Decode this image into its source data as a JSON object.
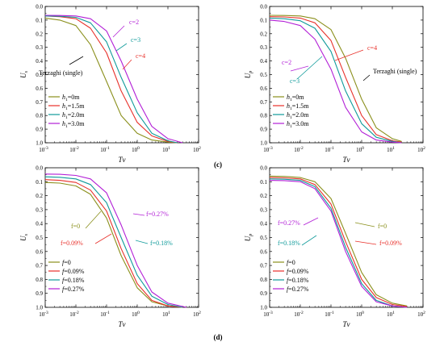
{
  "figure": {
    "panel_labels": [
      "(c)",
      "(d)"
    ]
  },
  "chart_data": [
    {
      "type": "line",
      "id": "c-left",
      "xlabel": "Tv",
      "ylabel": "Us",
      "ylabel_main": "U",
      "ylabel_sub": "s",
      "x_scale": "log",
      "xlim": [
        0.001,
        100
      ],
      "ylim": [
        0.0,
        1.0
      ],
      "y_inverted": true,
      "xticks": [
        {
          "e": "-3"
        },
        {
          "e": "-2"
        },
        {
          "e": "-1"
        },
        {
          "e": "0"
        },
        {
          "e": "1"
        },
        {
          "e": "2"
        }
      ],
      "yticks": [
        "0.0",
        "0.1",
        "0.2",
        "0.3",
        "0.4",
        "0.5",
        "0.6",
        "0.7",
        "0.8",
        "0.9",
        "1.0"
      ],
      "legend_position": "bottom-left",
      "series": [
        {
          "label_main": "h",
          "label_sub": "1",
          "label_rest": "=0m",
          "color": "#8a8f1b",
          "x": [
            0.001,
            0.003,
            0.01,
            0.03,
            0.1,
            0.3,
            1,
            3,
            10,
            20
          ],
          "y": [
            0.085,
            0.1,
            0.14,
            0.28,
            0.55,
            0.8,
            0.93,
            0.98,
            0.995,
            1.0
          ]
        },
        {
          "label_main": "h",
          "label_sub": "1",
          "label_rest": "=1.5m",
          "color": "#e8302a",
          "x": [
            0.001,
            0.003,
            0.01,
            0.03,
            0.1,
            0.3,
            1,
            3,
            10,
            20
          ],
          "y": [
            0.07,
            0.075,
            0.09,
            0.16,
            0.34,
            0.62,
            0.85,
            0.95,
            0.99,
            1.0
          ]
        },
        {
          "label_main": "h",
          "label_sub": "1",
          "label_rest": "=2.0m",
          "color": "#0f9a9a",
          "x": [
            0.001,
            0.003,
            0.01,
            0.03,
            0.1,
            0.3,
            1,
            3,
            10,
            20
          ],
          "y": [
            0.07,
            0.072,
            0.08,
            0.12,
            0.26,
            0.52,
            0.78,
            0.93,
            0.985,
            1.0
          ]
        },
        {
          "label_main": "h",
          "label_sub": "1",
          "label_rest": "=3.0m",
          "color": "#b21fd6",
          "x": [
            0.001,
            0.003,
            0.01,
            0.03,
            0.1,
            0.3,
            1,
            3,
            10,
            30
          ],
          "y": [
            0.065,
            0.066,
            0.07,
            0.09,
            0.18,
            0.4,
            0.68,
            0.88,
            0.97,
            1.0
          ]
        }
      ],
      "annotations": [
        {
          "text": "c=2",
          "color": "#b21fd6"
        },
        {
          "text": "c=3",
          "color": "#0f9a9a"
        },
        {
          "text": "c=4",
          "color": "#e8302a"
        },
        {
          "text": "Terzaghi (single)",
          "color": "#000000"
        }
      ]
    },
    {
      "type": "line",
      "id": "c-right",
      "xlabel": "Tv",
      "ylabel": "Up",
      "ylabel_main": "U",
      "ylabel_sub": "p",
      "x_scale": "log",
      "xlim": [
        0.001,
        100
      ],
      "ylim": [
        0.0,
        1.0
      ],
      "y_inverted": true,
      "xticks": [
        {
          "e": "-3"
        },
        {
          "e": "-2"
        },
        {
          "e": "-1"
        },
        {
          "e": "0"
        },
        {
          "e": "1"
        },
        {
          "e": "2"
        }
      ],
      "yticks": [
        "0.0",
        "0.1",
        "0.2",
        "0.3",
        "0.4",
        "0.5",
        "0.6",
        "0.7",
        "0.8",
        "0.9",
        "1.0"
      ],
      "legend_position": "bottom-left",
      "series": [
        {
          "label_main": "h",
          "label_sub": "1",
          "label_rest": "=0m",
          "color": "#8a8f1b",
          "x": [
            0.001,
            0.003,
            0.01,
            0.03,
            0.1,
            0.3,
            1,
            3,
            10,
            20
          ],
          "y": [
            0.065,
            0.066,
            0.07,
            0.09,
            0.17,
            0.38,
            0.68,
            0.89,
            0.97,
            0.99
          ]
        },
        {
          "label_main": "h",
          "label_sub": "1",
          "label_rest": "=1.5m",
          "color": "#e8302a",
          "x": [
            0.001,
            0.003,
            0.01,
            0.03,
            0.1,
            0.3,
            1,
            3,
            10,
            20
          ],
          "y": [
            0.075,
            0.077,
            0.085,
            0.12,
            0.25,
            0.52,
            0.8,
            0.94,
            0.985,
            0.995
          ]
        },
        {
          "label_main": "h",
          "label_sub": "1",
          "label_rest": "=2.0m",
          "color": "#0f9a9a",
          "x": [
            0.001,
            0.003,
            0.01,
            0.03,
            0.1,
            0.3,
            1,
            3,
            10,
            20
          ],
          "y": [
            0.085,
            0.09,
            0.105,
            0.16,
            0.33,
            0.62,
            0.86,
            0.96,
            0.99,
            1.0
          ]
        },
        {
          "label_main": "h",
          "label_sub": "1",
          "label_rest": "=3.0m",
          "color": "#b21fd6",
          "x": [
            0.001,
            0.003,
            0.01,
            0.03,
            0.1,
            0.3,
            1,
            3,
            10,
            20
          ],
          "y": [
            0.1,
            0.11,
            0.14,
            0.24,
            0.46,
            0.74,
            0.92,
            0.98,
            0.995,
            1.0
          ]
        }
      ],
      "annotations": [
        {
          "text": "c=4",
          "color": "#e8302a"
        },
        {
          "text": "c=2",
          "color": "#b21fd6"
        },
        {
          "text": "c=3",
          "color": "#0f9a9a"
        },
        {
          "text": "Terzaghi (single)",
          "color": "#000000"
        }
      ]
    },
    {
      "type": "line",
      "id": "d-left",
      "xlabel": "Tv",
      "ylabel": "Us",
      "ylabel_main": "U",
      "ylabel_sub": "s",
      "x_scale": "log",
      "xlim": [
        0.001,
        100
      ],
      "ylim": [
        0.0,
        1.0
      ],
      "y_inverted": true,
      "xticks": [
        {
          "e": "-3"
        },
        {
          "e": "-2"
        },
        {
          "e": "-1"
        },
        {
          "e": "0"
        },
        {
          "e": "1"
        },
        {
          "e": "2"
        }
      ],
      "yticks": [
        "0.0",
        "0.1",
        "0.2",
        "0.3",
        "0.4",
        "0.5",
        "0.6",
        "0.7",
        "0.8",
        "0.9",
        "1.0"
      ],
      "legend_position": "bottom-left",
      "series": [
        {
          "label_main": "f",
          "label_sub": "",
          "label_rest": "=0",
          "color": "#8a8f1b",
          "x": [
            0.001,
            0.003,
            0.01,
            0.03,
            0.1,
            0.3,
            1,
            3,
            10,
            30
          ],
          "y": [
            0.105,
            0.11,
            0.13,
            0.19,
            0.36,
            0.63,
            0.86,
            0.96,
            0.99,
            1.0
          ]
        },
        {
          "label_main": "f",
          "label_sub": "",
          "label_rest": "=0.09%",
          "color": "#e8302a",
          "x": [
            0.001,
            0.003,
            0.01,
            0.03,
            0.1,
            0.3,
            1,
            3,
            10,
            30
          ],
          "y": [
            0.085,
            0.09,
            0.105,
            0.16,
            0.31,
            0.58,
            0.83,
            0.95,
            0.99,
            1.0
          ]
        },
        {
          "label_main": "f",
          "label_sub": "",
          "label_rest": "=0.18%",
          "color": "#0f9a9a",
          "x": [
            0.001,
            0.003,
            0.01,
            0.03,
            0.1,
            0.3,
            1,
            3,
            10,
            30
          ],
          "y": [
            0.065,
            0.068,
            0.08,
            0.12,
            0.25,
            0.5,
            0.77,
            0.92,
            0.98,
            1.0
          ]
        },
        {
          "label_main": "f",
          "label_sub": "",
          "label_rest": "=0.27%",
          "color": "#b21fd6",
          "x": [
            0.001,
            0.003,
            0.01,
            0.03,
            0.1,
            0.3,
            1,
            3,
            10,
            40
          ],
          "y": [
            0.045,
            0.047,
            0.055,
            0.08,
            0.18,
            0.41,
            0.7,
            0.89,
            0.97,
            1.0
          ]
        }
      ],
      "annotations": [
        {
          "text": "f=0",
          "color": "#8a8f1b"
        },
        {
          "text": "f=0.09%",
          "color": "#e8302a"
        },
        {
          "text": "f=0.27%",
          "color": "#b21fd6"
        },
        {
          "text": "f=0.18%",
          "color": "#0f9a9a"
        }
      ]
    },
    {
      "type": "line",
      "id": "d-right",
      "xlabel": "Tv",
      "ylabel": "Up",
      "ylabel_main": "U",
      "ylabel_sub": "p",
      "x_scale": "log",
      "xlim": [
        0.001,
        100
      ],
      "ylim": [
        0.0,
        1.0
      ],
      "y_inverted": true,
      "xticks": [
        {
          "e": "-3"
        },
        {
          "e": "-2"
        },
        {
          "e": "-1"
        },
        {
          "e": "0"
        },
        {
          "e": "1"
        },
        {
          "e": "2"
        }
      ],
      "yticks": [
        "0.0",
        "0.1",
        "0.2",
        "0.3",
        "0.4",
        "0.5",
        "0.6",
        "0.7",
        "0.8",
        "0.9",
        "1.0"
      ],
      "legend_position": "bottom-left",
      "series": [
        {
          "label_main": "f",
          "label_sub": "",
          "label_rest": "=0",
          "color": "#8a8f1b",
          "x": [
            0.001,
            0.003,
            0.01,
            0.03,
            0.1,
            0.3,
            1,
            3,
            10,
            30
          ],
          "y": [
            0.06,
            0.062,
            0.07,
            0.1,
            0.22,
            0.47,
            0.75,
            0.91,
            0.97,
            0.99
          ]
        },
        {
          "label_main": "f",
          "label_sub": "",
          "label_rest": "=0.09%",
          "color": "#e8302a",
          "x": [
            0.001,
            0.003,
            0.01,
            0.03,
            0.1,
            0.3,
            1,
            3,
            10,
            30
          ],
          "y": [
            0.07,
            0.072,
            0.08,
            0.12,
            0.26,
            0.53,
            0.8,
            0.93,
            0.98,
            0.995
          ]
        },
        {
          "label_main": "f",
          "label_sub": "",
          "label_rest": "=0.18%",
          "color": "#0f9a9a",
          "x": [
            0.001,
            0.003,
            0.01,
            0.03,
            0.1,
            0.3,
            1,
            3,
            10,
            30
          ],
          "y": [
            0.08,
            0.082,
            0.09,
            0.135,
            0.29,
            0.57,
            0.83,
            0.95,
            0.99,
            1.0
          ]
        },
        {
          "label_main": "f",
          "label_sub": "",
          "label_rest": "=0.27%",
          "color": "#b21fd6",
          "x": [
            0.001,
            0.003,
            0.01,
            0.03,
            0.1,
            0.3,
            1,
            3,
            10,
            30
          ],
          "y": [
            0.09,
            0.092,
            0.1,
            0.15,
            0.31,
            0.6,
            0.85,
            0.96,
            0.99,
            1.0
          ]
        }
      ],
      "annotations": [
        {
          "text": "f=0",
          "color": "#8a8f1b"
        },
        {
          "text": "f=0.27%",
          "color": "#b21fd6"
        },
        {
          "text": "f=0.09%",
          "color": "#e8302a"
        },
        {
          "text": "f=0.18%",
          "color": "#0f9a9a"
        }
      ]
    }
  ]
}
